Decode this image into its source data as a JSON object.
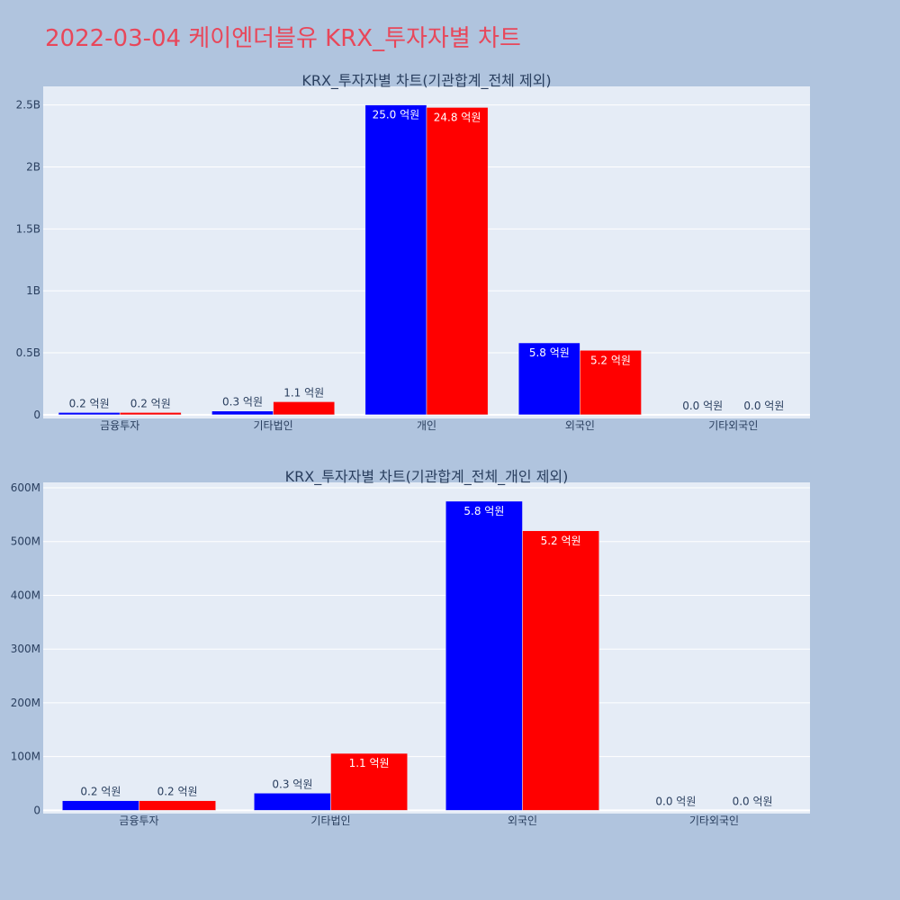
{
  "page": {
    "title": "2022-03-04 케이엔더블유 KRX_투자자별 차트",
    "background": "#b0c4de",
    "plot_background": "#e5ecf6",
    "title_color": "#e8475a"
  },
  "chart_data": [
    {
      "type": "bar",
      "title": "KRX_투자자별 차트(기관합계_전체 제외)",
      "categories": [
        "금융투자",
        "기타법인",
        "개인",
        "외국인",
        "기타외국인"
      ],
      "series": [
        {
          "color": "#0000ff",
          "values": [
            18000000,
            30000000,
            2500000000,
            580000000,
            0
          ],
          "labels": [
            "0.2 억원",
            "0.3 억원",
            "25.0 억원",
            "5.8 억원",
            "0.0 억원"
          ]
        },
        {
          "color": "#ff0000",
          "values": [
            18000000,
            105000000,
            2480000000,
            520000000,
            0
          ],
          "labels": [
            "0.2 억원",
            "1.1 억원",
            "24.8 억원",
            "5.2 억원",
            "0.0 억원"
          ]
        }
      ],
      "yticks": [
        0,
        500000000,
        1000000000,
        1500000000,
        2000000000,
        2500000000
      ],
      "yticklabels": [
        "0",
        "0.5B",
        "1B",
        "1.5B",
        "2B",
        "2.5B"
      ],
      "ylim": [
        -30000000,
        2650000000
      ],
      "grid": true,
      "legend": "none"
    },
    {
      "type": "bar",
      "title": "KRX_투자자별 차트(기관합계_전체_개인 제외)",
      "categories": [
        "금융투자",
        "기타법인",
        "외국인",
        "기타외국인"
      ],
      "series": [
        {
          "color": "#0000ff",
          "values": [
            18000000,
            32000000,
            575000000,
            0
          ],
          "labels": [
            "0.2 억원",
            "0.3 억원",
            "5.8 억원",
            "0.0 억원"
          ]
        },
        {
          "color": "#ff0000",
          "values": [
            18000000,
            106000000,
            520000000,
            0
          ],
          "labels": [
            "0.2 억원",
            "1.1 억원",
            "5.2 억원",
            "0.0 억원"
          ]
        }
      ],
      "yticks": [
        0,
        100000000,
        200000000,
        300000000,
        400000000,
        500000000,
        600000000
      ],
      "yticklabels": [
        "0",
        "100M",
        "200M",
        "300M",
        "400M",
        "500M",
        "600M"
      ],
      "ylim": [
        -6000000,
        610000000
      ],
      "grid": true,
      "legend": "none"
    }
  ]
}
